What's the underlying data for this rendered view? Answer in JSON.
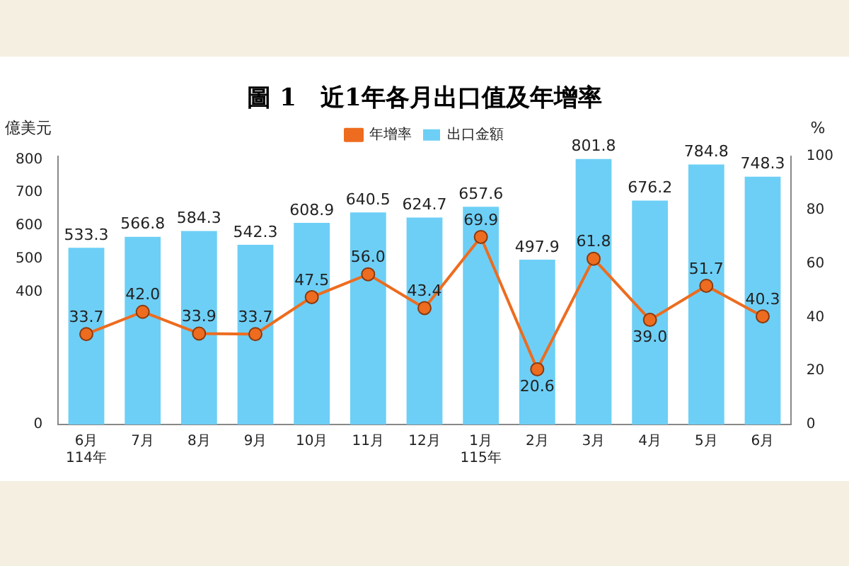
{
  "chart_data": {
    "type": "bar",
    "title": "圖 1　近1年各月出口值及年增率",
    "ylabel": "億美元",
    "y2label": "%",
    "categories": [
      "6月\n114年",
      "7月",
      "8月",
      "9月",
      "10月",
      "11月",
      "12月",
      "1月\n115年",
      "2月",
      "3月",
      "4月",
      "5月",
      "6月"
    ],
    "series": [
      {
        "name": "出口金額",
        "color": "#6dcff6",
        "values": [
          533.3,
          566.8,
          584.3,
          542.3,
          608.9,
          640.5,
          624.7,
          657.6,
          497.9,
          801.8,
          676.2,
          784.8,
          748.3
        ]
      },
      {
        "name": "年增率",
        "type": "line",
        "axis": "y2",
        "color": "#ed6c1f",
        "values": [
          33.7,
          42.0,
          33.9,
          33.7,
          47.5,
          56.0,
          43.4,
          69.9,
          20.6,
          61.8,
          39.0,
          51.7,
          40.3
        ],
        "value_labels": [
          "33.7",
          "42.0",
          "33.9",
          "33.7",
          "47.5",
          "56.0",
          "43.4",
          "69.9",
          "20.6",
          "61.8",
          "39.0",
          "51.7",
          "40.3"
        ]
      }
    ],
    "ylim": [
      0,
      810
    ],
    "yticks": [
      0,
      400,
      500,
      600,
      700,
      800
    ],
    "y2lim": [
      0,
      100
    ],
    "y2ticks": [
      0,
      20,
      40,
      60,
      80,
      100
    ],
    "grid": false,
    "legend": "top",
    "marker": "circle",
    "line_style": "solid",
    "data_labels": true
  }
}
